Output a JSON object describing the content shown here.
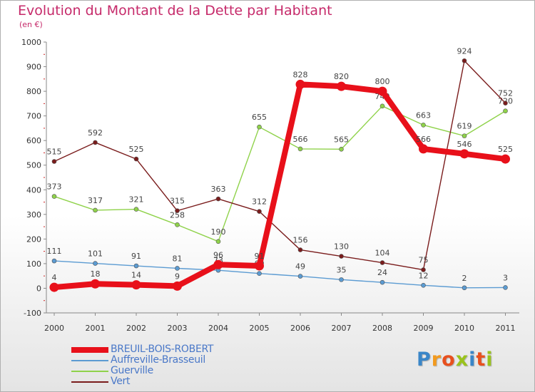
{
  "title": "Evolution du Montant de la Dette par Habitant",
  "subtitle": "(en €)",
  "logo": {
    "text": "Proxiti",
    "letter_colors": [
      "#3a86c8",
      "#f29a1e",
      "#e8501e",
      "#9ac31c",
      "#3a86c8",
      "#e8501e",
      "#9ac31c"
    ]
  },
  "chart_data": {
    "type": "line",
    "x": [
      "2000",
      "2001",
      "2002",
      "2003",
      "2004",
      "2005",
      "2006",
      "2007",
      "2008",
      "2009",
      "2010",
      "2011"
    ],
    "ylim": [
      -100,
      1000
    ],
    "yticks": [
      "-100",
      "0",
      "100",
      "200",
      "300",
      "400",
      "500",
      "600",
      "700",
      "800",
      "900",
      "1000"
    ],
    "grid": false,
    "legend_position": "bottom-left",
    "series": [
      {
        "name": "BREUIL-BOIS-ROBERT",
        "color": "#e8101a",
        "thick": true,
        "values": [
          4,
          18,
          14,
          9,
          96,
          91,
          828,
          820,
          800,
          566,
          546,
          525
        ],
        "labels": [
          "4",
          "18",
          "14",
          "9",
          "96",
          "91",
          "828",
          "820",
          "800",
          "566",
          "546",
          "525"
        ]
      },
      {
        "name": "Auffreville-Brasseuil",
        "color": "#5b9bd2",
        "thick": false,
        "values": [
          111,
          101,
          91,
          81,
          73,
          60,
          49,
          35,
          24,
          12,
          2,
          3
        ],
        "labels": [
          "111",
          "101",
          "91",
          "81",
          "73",
          "60",
          "49",
          "35",
          "24",
          "12",
          "2",
          "3"
        ]
      },
      {
        "name": "Guerville",
        "color": "#8fd24a",
        "thick": false,
        "values": [
          373,
          317,
          321,
          258,
          190,
          655,
          566,
          565,
          740,
          663,
          619,
          720
        ],
        "labels": [
          "373",
          "317",
          "321",
          "258",
          "190",
          "655",
          "566",
          "565",
          "740",
          "663",
          "619",
          "720"
        ]
      },
      {
        "name": "Vert",
        "color": "#7a1c1c",
        "thick": false,
        "values": [
          515,
          592,
          525,
          315,
          363,
          312,
          156,
          130,
          104,
          75,
          924,
          752
        ],
        "labels": [
          "515",
          "592",
          "525",
          "315",
          "363",
          "312",
          "156",
          "130",
          "104",
          "75",
          "924",
          "752"
        ]
      }
    ]
  }
}
